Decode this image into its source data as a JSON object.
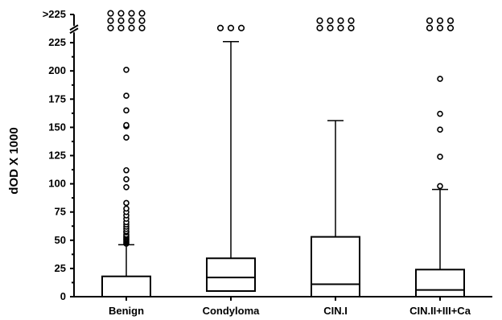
{
  "chart_data": {
    "type": "box",
    "title": "",
    "xlabel": "",
    "ylabel": "dOD X 1000",
    "ylim": [
      0,
      250
    ],
    "y_ticks": [
      {
        "value": 0,
        "label": "0"
      },
      {
        "value": 25,
        "label": "25"
      },
      {
        "value": 50,
        "label": "50"
      },
      {
        "value": 75,
        "label": "75"
      },
      {
        "value": 100,
        "label": "100"
      },
      {
        "value": 125,
        "label": "125"
      },
      {
        "value": 150,
        "label": "150"
      },
      {
        "value": 175,
        "label": "175"
      },
      {
        "value": 200,
        "label": "200"
      },
      {
        "value": 225,
        "label": "225"
      },
      {
        "value": 250,
        "label": ">225"
      }
    ],
    "axis_break_at": 237,
    "categories": [
      "Benign",
      "Condyloma",
      "CIN.I",
      "CIN.II+III+Ca"
    ],
    "boxes": [
      {
        "name": "Benign",
        "whisker_low": 0,
        "q1": 0,
        "median": 0,
        "q3": 18,
        "whisker_high": 46,
        "outliers": [
          47,
          48,
          49,
          50,
          51,
          52,
          53,
          54,
          55,
          57,
          58,
          60,
          62,
          64,
          66,
          69,
          72,
          75,
          78,
          83,
          97,
          104,
          112,
          141,
          151,
          152,
          165,
          178,
          201
        ]
      },
      {
        "name": "Condyloma",
        "whisker_low": 5,
        "q1": 5,
        "median": 17,
        "q3": 34,
        "whisker_high": 226,
        "outliers": []
      },
      {
        "name": "CIN.I",
        "whisker_low": 0,
        "q1": 0,
        "median": 11,
        "q3": 53,
        "whisker_high": 156,
        "outliers": []
      },
      {
        "name": "CIN.II+III+Ca",
        "whisker_low": 0,
        "q1": 0,
        "median": 6,
        "q3": 24,
        "whisker_high": 95,
        "outliers": [
          98,
          124,
          148,
          162,
          193
        ]
      }
    ],
    "overflow_outliers": [
      {
        "name": "Benign",
        "rows": [
          4,
          4,
          4
        ]
      },
      {
        "name": "Condyloma",
        "rows": [
          3
        ]
      },
      {
        "name": "CIN.I",
        "rows": [
          4,
          4
        ]
      },
      {
        "name": "CIN.II+III+Ca",
        "rows": [
          3,
          3
        ]
      }
    ],
    "grid": false,
    "legend": "none"
  }
}
